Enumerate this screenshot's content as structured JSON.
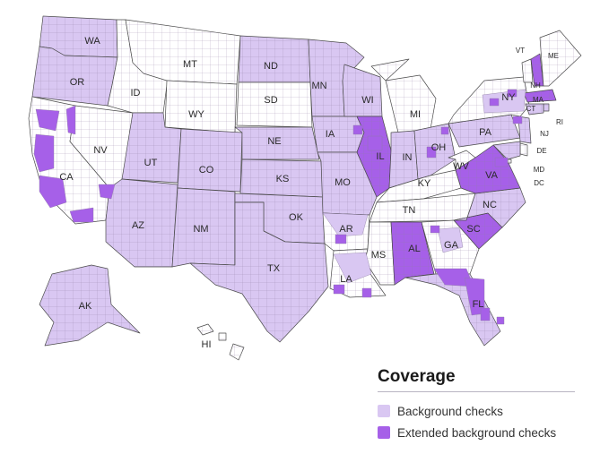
{
  "colors": {
    "none": "#ffffff",
    "background": "#d9c7f2",
    "extended": "#a660e8",
    "border": "#4a4a4a",
    "county": "#8e7ca3"
  },
  "legend": {
    "title": "Coverage",
    "items": [
      {
        "label": "Background checks",
        "color": "#d9c7f2"
      },
      {
        "label": "Extended background checks",
        "color": "#a660e8"
      }
    ]
  },
  "states": [
    {
      "abbr": "WA",
      "coverage": "background"
    },
    {
      "abbr": "OR",
      "coverage": "background"
    },
    {
      "abbr": "CA",
      "coverage": "partial-extended"
    },
    {
      "abbr": "NV",
      "coverage": "partial-extended"
    },
    {
      "abbr": "ID",
      "coverage": "none"
    },
    {
      "abbr": "MT",
      "coverage": "none"
    },
    {
      "abbr": "WY",
      "coverage": "none"
    },
    {
      "abbr": "UT",
      "coverage": "background"
    },
    {
      "abbr": "CO",
      "coverage": "background"
    },
    {
      "abbr": "AZ",
      "coverage": "background"
    },
    {
      "abbr": "NM",
      "coverage": "background"
    },
    {
      "abbr": "ND",
      "coverage": "background"
    },
    {
      "abbr": "SD",
      "coverage": "none"
    },
    {
      "abbr": "NE",
      "coverage": "background"
    },
    {
      "abbr": "KS",
      "coverage": "background"
    },
    {
      "abbr": "OK",
      "coverage": "background"
    },
    {
      "abbr": "TX",
      "coverage": "background"
    },
    {
      "abbr": "MN",
      "coverage": "background"
    },
    {
      "abbr": "IA",
      "coverage": "background"
    },
    {
      "abbr": "MO",
      "coverage": "background"
    },
    {
      "abbr": "AR",
      "coverage": "partial"
    },
    {
      "abbr": "LA",
      "coverage": "partial"
    },
    {
      "abbr": "WI",
      "coverage": "background"
    },
    {
      "abbr": "IL",
      "coverage": "extended"
    },
    {
      "abbr": "MI",
      "coverage": "none"
    },
    {
      "abbr": "IN",
      "coverage": "background"
    },
    {
      "abbr": "OH",
      "coverage": "background"
    },
    {
      "abbr": "KY",
      "coverage": "none"
    },
    {
      "abbr": "TN",
      "coverage": "none"
    },
    {
      "abbr": "MS",
      "coverage": "none"
    },
    {
      "abbr": "AL",
      "coverage": "extended"
    },
    {
      "abbr": "GA",
      "coverage": "partial"
    },
    {
      "abbr": "FL",
      "coverage": "background"
    },
    {
      "abbr": "SC",
      "coverage": "extended"
    },
    {
      "abbr": "NC",
      "coverage": "background"
    },
    {
      "abbr": "VA",
      "coverage": "extended"
    },
    {
      "abbr": "WV",
      "coverage": "none"
    },
    {
      "abbr": "PA",
      "coverage": "background"
    },
    {
      "abbr": "NY",
      "coverage": "partial"
    },
    {
      "abbr": "VT",
      "coverage": "none"
    },
    {
      "abbr": "NH",
      "coverage": "extended"
    },
    {
      "abbr": "ME",
      "coverage": "none"
    },
    {
      "abbr": "MA",
      "coverage": "extended"
    },
    {
      "abbr": "RI",
      "coverage": "background"
    },
    {
      "abbr": "CT",
      "coverage": "background"
    },
    {
      "abbr": "NJ",
      "coverage": "background"
    },
    {
      "abbr": "DE",
      "coverage": "none"
    },
    {
      "abbr": "MD",
      "coverage": "background"
    },
    {
      "abbr": "DC",
      "coverage": "none"
    },
    {
      "abbr": "AK",
      "coverage": "background"
    },
    {
      "abbr": "HI",
      "coverage": "none"
    }
  ]
}
